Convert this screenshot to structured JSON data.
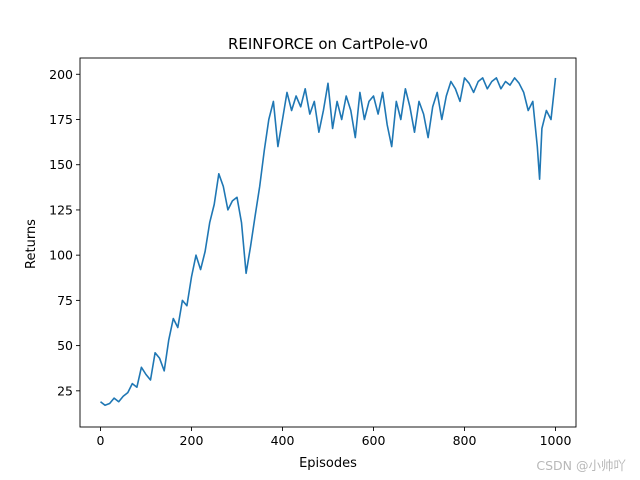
{
  "chart_data": {
    "type": "line",
    "title": "REINFORCE on CartPole-v0",
    "xlabel": "Episodes",
    "ylabel": "Returns",
    "xlim": [
      -45,
      1045
    ],
    "ylim": [
      5,
      209
    ],
    "xticks": [
      0,
      200,
      400,
      600,
      800,
      1000
    ],
    "yticks": [
      25,
      50,
      75,
      100,
      125,
      150,
      175,
      200
    ],
    "grid": false,
    "line_color": "#1f77b4",
    "series": [
      {
        "points": [
          [
            0,
            19
          ],
          [
            10,
            17
          ],
          [
            20,
            18
          ],
          [
            30,
            21
          ],
          [
            40,
            19
          ],
          [
            50,
            22
          ],
          [
            60,
            24
          ],
          [
            70,
            29
          ],
          [
            80,
            27
          ],
          [
            90,
            38
          ],
          [
            100,
            34
          ],
          [
            110,
            31
          ],
          [
            120,
            46
          ],
          [
            130,
            43
          ],
          [
            140,
            36
          ],
          [
            150,
            53
          ],
          [
            160,
            65
          ],
          [
            170,
            60
          ],
          [
            180,
            75
          ],
          [
            190,
            72
          ],
          [
            200,
            88
          ],
          [
            210,
            100
          ],
          [
            220,
            92
          ],
          [
            230,
            102
          ],
          [
            240,
            118
          ],
          [
            250,
            128
          ],
          [
            260,
            145
          ],
          [
            270,
            138
          ],
          [
            280,
            125
          ],
          [
            290,
            130
          ],
          [
            300,
            132
          ],
          [
            310,
            118
          ],
          [
            320,
            90
          ],
          [
            330,
            105
          ],
          [
            340,
            122
          ],
          [
            350,
            138
          ],
          [
            360,
            158
          ],
          [
            370,
            175
          ],
          [
            380,
            185
          ],
          [
            390,
            160
          ],
          [
            400,
            175
          ],
          [
            410,
            190
          ],
          [
            420,
            180
          ],
          [
            430,
            188
          ],
          [
            440,
            182
          ],
          [
            450,
            192
          ],
          [
            460,
            178
          ],
          [
            470,
            185
          ],
          [
            480,
            168
          ],
          [
            490,
            180
          ],
          [
            500,
            195
          ],
          [
            510,
            170
          ],
          [
            520,
            185
          ],
          [
            530,
            175
          ],
          [
            540,
            188
          ],
          [
            550,
            180
          ],
          [
            560,
            165
          ],
          [
            570,
            190
          ],
          [
            580,
            175
          ],
          [
            590,
            185
          ],
          [
            600,
            188
          ],
          [
            610,
            178
          ],
          [
            620,
            190
          ],
          [
            630,
            172
          ],
          [
            640,
            160
          ],
          [
            650,
            185
          ],
          [
            660,
            175
          ],
          [
            670,
            192
          ],
          [
            680,
            182
          ],
          [
            690,
            168
          ],
          [
            700,
            185
          ],
          [
            710,
            178
          ],
          [
            720,
            165
          ],
          [
            730,
            182
          ],
          [
            740,
            190
          ],
          [
            750,
            175
          ],
          [
            760,
            188
          ],
          [
            770,
            196
          ],
          [
            780,
            192
          ],
          [
            790,
            185
          ],
          [
            800,
            198
          ],
          [
            810,
            195
          ],
          [
            820,
            190
          ],
          [
            830,
            196
          ],
          [
            840,
            198
          ],
          [
            850,
            192
          ],
          [
            860,
            196
          ],
          [
            870,
            198
          ],
          [
            880,
            192
          ],
          [
            890,
            196
          ],
          [
            900,
            194
          ],
          [
            910,
            198
          ],
          [
            920,
            195
          ],
          [
            930,
            190
          ],
          [
            940,
            180
          ],
          [
            950,
            185
          ],
          [
            960,
            160
          ],
          [
            965,
            142
          ],
          [
            970,
            170
          ],
          [
            980,
            180
          ],
          [
            990,
            175
          ],
          [
            1000,
            198
          ]
        ]
      }
    ]
  },
  "watermark": "CSDN @小帅吖"
}
